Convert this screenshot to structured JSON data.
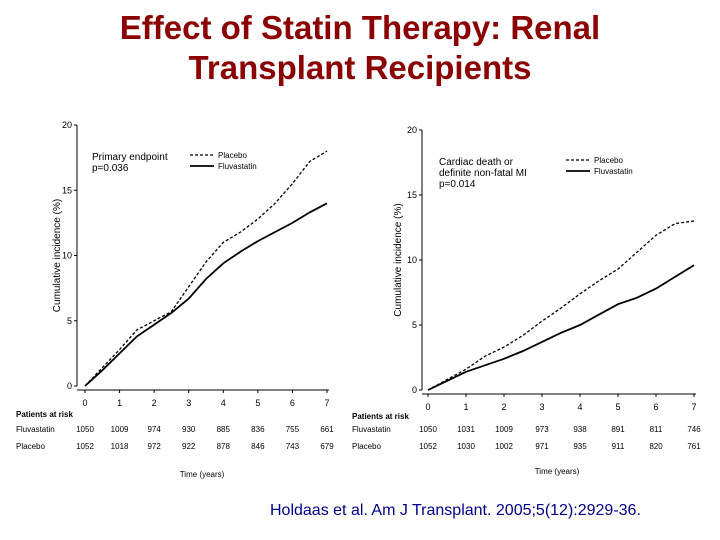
{
  "slide": {
    "title_line1": "Effect of Statin Therapy: Renal",
    "title_line2": "Transplant Recipients",
    "citation": "Holdaas et al. Am J Transplant. 2005;5(12):2929-36."
  },
  "colors": {
    "title": "#8b0000",
    "citation": "#00008b",
    "lines": "#000000"
  },
  "chart_data": [
    {
      "type": "line",
      "endpoint_label": "Primary endpoint",
      "p_value": "p=0.036",
      "ylabel": "Cumulative incidence (%)",
      "xlabel": "Time (years)",
      "ylim": [
        0,
        20
      ],
      "xlim": [
        0,
        7
      ],
      "yticks": [
        "0",
        "5",
        "10",
        "15",
        "20"
      ],
      "xticks": [
        "0",
        "1",
        "2",
        "3",
        "4",
        "5",
        "6",
        "7"
      ],
      "legend_position": "top-right",
      "series": [
        {
          "name": "Placebo",
          "style": "dashed",
          "x": [
            0,
            0.5,
            1,
            1.5,
            2,
            2.5,
            3,
            3.5,
            4,
            4.5,
            5,
            5.5,
            6,
            6.5,
            7
          ],
          "y": [
            0,
            1.4,
            2.8,
            4.3,
            5.0,
            5.7,
            7.6,
            9.5,
            11.0,
            11.8,
            12.8,
            14.0,
            15.5,
            17.2,
            18.0
          ]
        },
        {
          "name": "Fluvastatin",
          "style": "solid",
          "x": [
            0,
            0.5,
            1,
            1.5,
            2,
            2.5,
            3,
            3.5,
            4,
            4.5,
            5,
            5.5,
            6,
            6.5,
            7
          ],
          "y": [
            0,
            1.2,
            2.5,
            3.8,
            4.7,
            5.6,
            6.7,
            8.2,
            9.4,
            10.3,
            11.1,
            11.8,
            12.5,
            13.3,
            14.0
          ]
        }
      ],
      "at_risk": {
        "header": "Patients at risk",
        "rows": [
          {
            "label": "Fluvastatin",
            "values": [
              "1050",
              "1009",
              "974",
              "930",
              "885",
              "836",
              "755",
              "661"
            ]
          },
          {
            "label": "Placebo",
            "values": [
              "1052",
              "1018",
              "972",
              "922",
              "878",
              "846",
              "743",
              "679"
            ]
          }
        ]
      }
    },
    {
      "type": "line",
      "endpoint_label": "Cardiac death or definite non-fatal MI",
      "endpoint_line1": "Cardiac death or",
      "endpoint_line2": "definite non-fatal MI",
      "p_value": "p=0.014",
      "ylabel": "Cumulative incidence (%)",
      "xlabel": "Time (years)",
      "ylim": [
        0,
        20
      ],
      "xlim": [
        0,
        7
      ],
      "yticks": [
        "0",
        "5",
        "10",
        "15",
        "20"
      ],
      "xticks": [
        "0",
        "1",
        "2",
        "3",
        "4",
        "5",
        "6",
        "7"
      ],
      "legend_position": "top-right",
      "series": [
        {
          "name": "Placebo",
          "style": "dashed",
          "x": [
            0,
            0.5,
            1,
            1.5,
            2,
            2.5,
            3,
            3.5,
            4,
            4.5,
            5,
            5.5,
            6,
            6.5,
            7
          ],
          "y": [
            0,
            0.8,
            1.6,
            2.6,
            3.3,
            4.2,
            5.3,
            6.3,
            7.4,
            8.4,
            9.3,
            10.6,
            11.9,
            12.8,
            13.0
          ]
        },
        {
          "name": "Fluvastatin",
          "style": "solid",
          "x": [
            0,
            0.5,
            1,
            1.5,
            2,
            2.5,
            3,
            3.5,
            4,
            4.5,
            5,
            5.5,
            6,
            6.5,
            7
          ],
          "y": [
            0,
            0.7,
            1.4,
            1.9,
            2.4,
            3.0,
            3.7,
            4.4,
            5.0,
            5.8,
            6.6,
            7.1,
            7.8,
            8.7,
            9.6
          ]
        }
      ],
      "at_risk": {
        "header": "Patients at risk",
        "rows": [
          {
            "label": "Fluvastatin",
            "values": [
              "1050",
              "1031",
              "1009",
              "973",
              "938",
              "891",
              "811",
              "746"
            ]
          },
          {
            "label": "Placebo",
            "values": [
              "1052",
              "1030",
              "1002",
              "971",
              "935",
              "911",
              "820",
              "761"
            ]
          }
        ]
      }
    }
  ]
}
